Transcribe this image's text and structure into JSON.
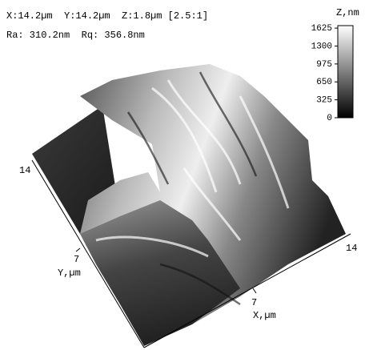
{
  "header": {
    "line1": "X:14.2µm  Y:14.2µm  Z:1.8µm [2.5:1]",
    "line2": "Ra: 310.2nm  Rq: 356.8nm"
  },
  "colorbar": {
    "title": "Z,nm",
    "zlim": [
      0,
      1670
    ],
    "ticks": [
      1625,
      1300,
      975,
      650,
      325,
      0
    ]
  },
  "y_axis": {
    "label": "Y,µm",
    "ticks": [
      14,
      7
    ]
  },
  "x_axis": {
    "label": "X,µm",
    "ticks": [
      7,
      14
    ]
  }
}
